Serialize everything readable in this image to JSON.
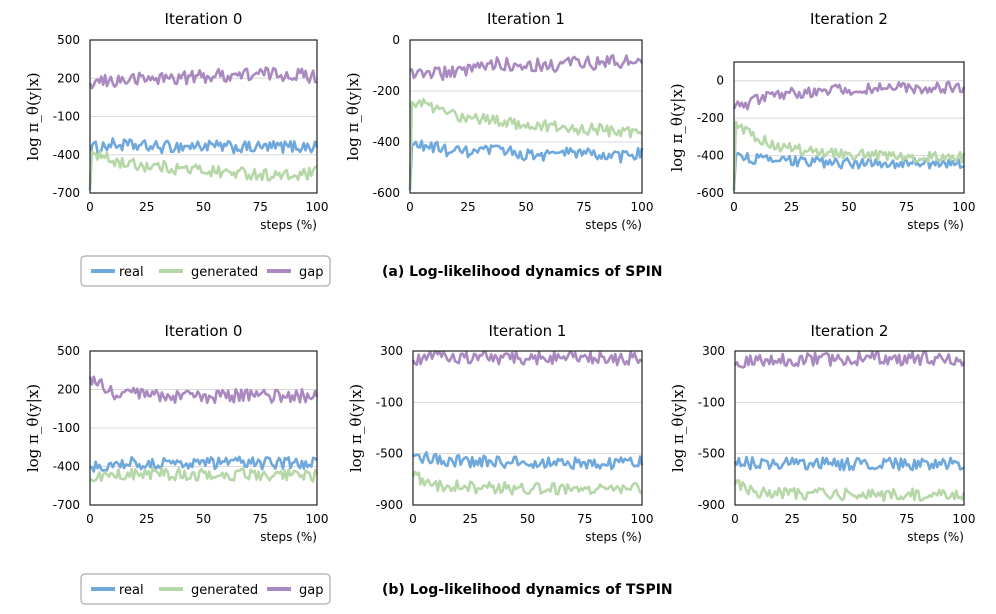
{
  "colors": {
    "real": "#6fa8dc",
    "generated": "#b6d7a8",
    "gap": "#a989c0",
    "grid": "#d9d9d9"
  },
  "rows": [
    {
      "caption": "(a) Log-likelihood dynamics of SPIN",
      "legend": [
        {
          "key": "real",
          "label": "real"
        },
        {
          "key": "generated",
          "label": "generated"
        },
        {
          "key": "gap",
          "label": "gap"
        }
      ]
    },
    {
      "caption": "(b) Log-likelihood dynamics of TSPIN",
      "legend": [
        {
          "key": "real",
          "label": "real"
        },
        {
          "key": "generated",
          "label": "generated"
        },
        {
          "key": "gap",
          "label": "gap"
        }
      ]
    }
  ],
  "chart_data": [
    {
      "type": "line",
      "title": "Iteration 0",
      "xlabel": "steps (%)",
      "ylabel": "log π_θ(y|x)",
      "xlim": [
        0,
        100
      ],
      "ylim": [
        -700,
        500
      ],
      "xticks": [
        0,
        25,
        50,
        75,
        100
      ],
      "yticks": [
        500,
        200,
        -100,
        -400,
        -700
      ],
      "xtick_labels": [
        "0",
        "25",
        "50",
        "75",
        "100"
      ],
      "ytick_labels": [
        "500",
        "200",
        "-100",
        "-400",
        "-700"
      ],
      "x": [
        0,
        10,
        20,
        30,
        40,
        50,
        60,
        70,
        80,
        90,
        100
      ],
      "series": [
        {
          "name": "real",
          "key": "real",
          "values": [
            -350,
            -320,
            -330,
            -340,
            -335,
            -330,
            -340,
            -345,
            -340,
            -335,
            -340
          ]
        },
        {
          "name": "generated",
          "key": "generated",
          "values": [
            -380,
            -450,
            -480,
            -490,
            -510,
            -520,
            -540,
            -545,
            -560,
            -570,
            -540
          ]
        },
        {
          "name": "gap",
          "key": "gap",
          "values": [
            160,
            180,
            190,
            200,
            205,
            215,
            225,
            230,
            235,
            230,
            210
          ]
        }
      ]
    },
    {
      "type": "line",
      "title": "Iteration 1",
      "xlabel": "steps (%)",
      "ylabel": "log π_θ(y|x)",
      "xlim": [
        0,
        100
      ],
      "ylim": [
        -600,
        0
      ],
      "xticks": [
        0,
        25,
        50,
        75,
        100
      ],
      "yticks": [
        0,
        -200,
        -400,
        -600
      ],
      "xtick_labels": [
        "0",
        "25",
        "50",
        "75",
        "100"
      ],
      "ytick_labels": [
        "0",
        "-200",
        "-400",
        "-600"
      ],
      "x": [
        0,
        10,
        20,
        30,
        40,
        50,
        60,
        70,
        80,
        90,
        100
      ],
      "series": [
        {
          "name": "real",
          "key": "real",
          "values": [
            -410,
            -420,
            -440,
            -440,
            -430,
            -450,
            -450,
            -440,
            -450,
            -460,
            -440
          ]
        },
        {
          "name": "generated",
          "key": "generated",
          "values": [
            -230,
            -270,
            -300,
            -310,
            -320,
            -330,
            -340,
            -350,
            -350,
            -360,
            -360
          ]
        },
        {
          "name": "gap",
          "key": "gap",
          "values": [
            -120,
            -130,
            -130,
            -110,
            -90,
            -100,
            -100,
            -90,
            -90,
            -85,
            -90
          ]
        }
      ]
    },
    {
      "type": "line",
      "title": "Iteration 2",
      "xlabel": "steps (%)",
      "ylabel": "log π_θ(y|x)",
      "xlim": [
        0,
        100
      ],
      "ylim": [
        -600,
        100
      ],
      "xticks": [
        0,
        25,
        50,
        75,
        100
      ],
      "yticks": [
        0,
        -200,
        -400,
        -600
      ],
      "xtick_labels": [
        "0",
        "25",
        "50",
        "75",
        "100"
      ],
      "ytick_labels": [
        "0",
        "-200",
        "-400",
        "-600"
      ],
      "x": [
        0,
        10,
        20,
        30,
        40,
        50,
        60,
        70,
        80,
        90,
        100
      ],
      "series": [
        {
          "name": "real",
          "key": "real",
          "values": [
            -400,
            -420,
            -430,
            -430,
            -440,
            -440,
            -440,
            -440,
            -440,
            -440,
            -440
          ]
        },
        {
          "name": "generated",
          "key": "generated",
          "values": [
            -230,
            -310,
            -350,
            -370,
            -380,
            -390,
            -400,
            -400,
            -405,
            -410,
            -410
          ]
        },
        {
          "name": "gap",
          "key": "gap",
          "values": [
            -150,
            -100,
            -70,
            -60,
            -55,
            -45,
            -45,
            -40,
            -40,
            -40,
            -30
          ]
        }
      ]
    },
    {
      "type": "line",
      "title": "Iteration 0",
      "xlabel": "steps (%)",
      "ylabel": "log π_θ(y|x)",
      "xlim": [
        0,
        100
      ],
      "ylim": [
        -700,
        500
      ],
      "xticks": [
        0,
        25,
        50,
        75,
        100
      ],
      "yticks": [
        500,
        200,
        -100,
        -400,
        -700
      ],
      "xtick_labels": [
        "0",
        "25",
        "50",
        "75",
        "100"
      ],
      "ytick_labels": [
        "500",
        "200",
        "-100",
        "-400",
        "-700"
      ],
      "x": [
        0,
        10,
        20,
        30,
        40,
        50,
        60,
        70,
        80,
        90,
        100
      ],
      "series": [
        {
          "name": "real",
          "key": "real",
          "values": [
            -400,
            -380,
            -370,
            -380,
            -370,
            -375,
            -370,
            -370,
            -375,
            -375,
            -370
          ]
        },
        {
          "name": "generated",
          "key": "generated",
          "values": [
            -500,
            -460,
            -460,
            -460,
            -460,
            -460,
            -465,
            -460,
            -460,
            -470,
            -470
          ]
        },
        {
          "name": "gap",
          "key": "gap",
          "values": [
            300,
            160,
            160,
            150,
            150,
            140,
            150,
            150,
            140,
            150,
            160
          ]
        }
      ]
    },
    {
      "type": "line",
      "title": "Iteration 1",
      "xlabel": "steps (%)",
      "ylabel": "log π_θ(y|x)",
      "xlim": [
        0,
        100
      ],
      "ylim": [
        -900,
        300
      ],
      "xticks": [
        0,
        25,
        50,
        75,
        100
      ],
      "yticks": [
        300,
        -100,
        -500,
        -900
      ],
      "xtick_labels": [
        "0",
        "25",
        "50",
        "75",
        "100"
      ],
      "ytick_labels": [
        "300",
        "-100",
        "-500",
        "-900"
      ],
      "x": [
        0,
        10,
        20,
        30,
        40,
        50,
        60,
        70,
        80,
        90,
        100
      ],
      "series": [
        {
          "name": "real",
          "key": "real",
          "values": [
            -520,
            -540,
            -560,
            -560,
            -570,
            -570,
            -570,
            -575,
            -575,
            -575,
            -570
          ]
        },
        {
          "name": "generated",
          "key": "generated",
          "values": [
            -680,
            -740,
            -760,
            -765,
            -770,
            -770,
            -770,
            -775,
            -775,
            -775,
            -770
          ]
        },
        {
          "name": "gap",
          "key": "gap",
          "values": [
            230,
            250,
            255,
            250,
            250,
            245,
            245,
            240,
            240,
            240,
            245
          ]
        }
      ]
    },
    {
      "type": "line",
      "title": "Iteration 2",
      "xlabel": "steps (%)",
      "ylabel": "log π_θ(y|x)",
      "xlim": [
        0,
        100
      ],
      "ylim": [
        -900,
        300
      ],
      "xticks": [
        0,
        25,
        50,
        75,
        100
      ],
      "yticks": [
        300,
        -100,
        -500,
        -900
      ],
      "xtick_labels": [
        "0",
        "25",
        "50",
        "75",
        "100"
      ],
      "ytick_labels": [
        "300",
        "-100",
        "-500",
        "-900"
      ],
      "x": [
        0,
        10,
        20,
        30,
        40,
        50,
        60,
        70,
        80,
        90,
        100
      ],
      "series": [
        {
          "name": "real",
          "key": "real",
          "values": [
            -560,
            -580,
            -580,
            -580,
            -580,
            -580,
            -580,
            -580,
            -580,
            -580,
            -575
          ]
        },
        {
          "name": "generated",
          "key": "generated",
          "values": [
            -740,
            -800,
            -810,
            -815,
            -815,
            -815,
            -820,
            -820,
            -820,
            -820,
            -815
          ]
        },
        {
          "name": "gap",
          "key": "gap",
          "values": [
            190,
            220,
            230,
            235,
            235,
            235,
            240,
            240,
            240,
            240,
            240
          ]
        }
      ]
    }
  ]
}
